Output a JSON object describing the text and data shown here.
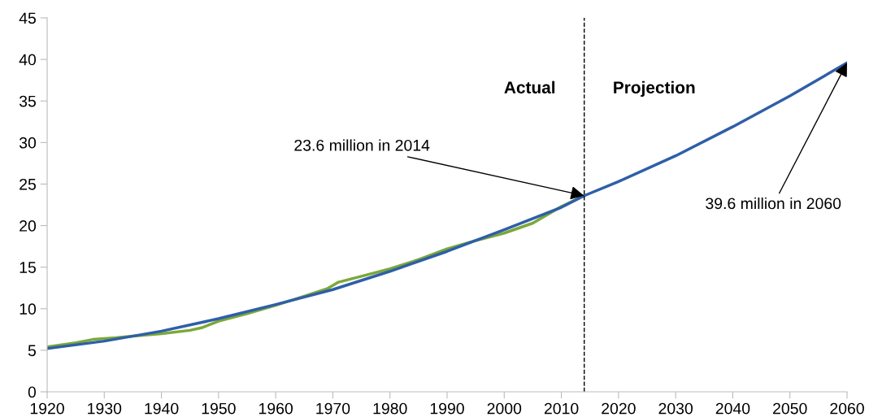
{
  "chart_data": {
    "type": "line",
    "xlim": [
      1920,
      2060
    ],
    "xticks": [
      1920,
      1930,
      1940,
      1950,
      1960,
      1970,
      1980,
      1990,
      2000,
      2010,
      2020,
      2030,
      2040,
      2050,
      2060
    ],
    "ylim": [
      0,
      45
    ],
    "yticks": [
      0,
      5,
      10,
      15,
      20,
      25,
      30,
      35,
      40,
      45
    ],
    "grid": false,
    "legend": false,
    "marker": "none",
    "line_style": "solid",
    "series": [
      {
        "color": "#7aa83a",
        "x": [
          1920,
          1925,
          1928,
          1932,
          1935,
          1940,
          1945,
          1947,
          1950,
          1955,
          1960,
          1965,
          1969,
          1971,
          1975,
          1980,
          1985,
          1990,
          1995,
          2000,
          2005,
          2008,
          2010,
          2014
        ],
        "values": [
          5.4,
          5.9,
          6.3,
          6.5,
          6.7,
          7.0,
          7.4,
          7.7,
          8.5,
          9.4,
          10.4,
          11.5,
          12.4,
          13.2,
          13.9,
          14.8,
          15.9,
          17.2,
          18.2,
          19.1,
          20.3,
          21.5,
          22.3,
          23.6
        ]
      },
      {
        "color": "#2e5fa8",
        "x": [
          1920,
          1930,
          1940,
          1950,
          1960,
          1970,
          1980,
          1990,
          2000,
          2010,
          2014,
          2020,
          2030,
          2040,
          2050,
          2060
        ],
        "values": [
          5.2,
          6.1,
          7.3,
          8.8,
          10.5,
          12.3,
          14.5,
          16.9,
          19.5,
          22.2,
          23.6,
          25.3,
          28.4,
          31.9,
          35.6,
          39.6
        ]
      }
    ],
    "ref_lines": [
      {
        "axis": "x",
        "value": 2014,
        "color": "#000000",
        "line_style": "dashed"
      }
    ],
    "annotations": [
      "Actual",
      "Projection",
      {
        "text": "23.6 million in 2014",
        "x": 2014,
        "y": 23.6
      },
      {
        "text": "39.6 million in 2060",
        "x": 2060,
        "y": 39.6
      }
    ]
  }
}
